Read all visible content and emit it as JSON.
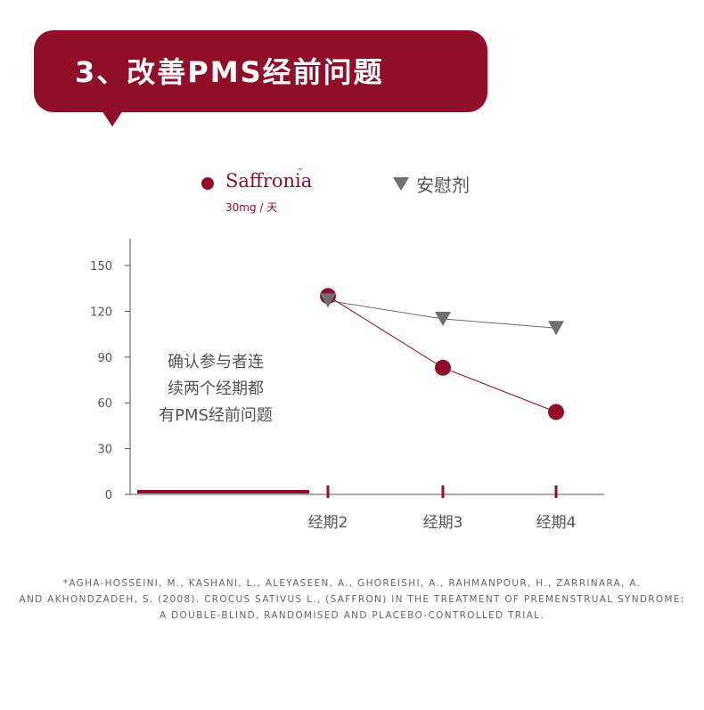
{
  "banner": {
    "title": "3、改善PMS经前问题",
    "color": "#8f0f2b"
  },
  "legend": {
    "series1_brand": "Saffronia",
    "series1_tm": "™",
    "series1_dose": "30mg / 天",
    "series2_label": "安慰剂"
  },
  "annotation": {
    "lines": [
      "确认参与者连",
      "续两个经期都",
      "有PMS经前问题"
    ]
  },
  "chart_data": {
    "type": "line",
    "categories": [
      "经期2",
      "经期3",
      "经期4"
    ],
    "ylim": [
      0,
      150
    ],
    "yticks": [
      0,
      30,
      60,
      90,
      120,
      150
    ],
    "series": [
      {
        "name": "Saffronia",
        "marker": "circle",
        "color": "#8f0f2b",
        "values": [
          130,
          83,
          54
        ]
      },
      {
        "name": "安慰剂",
        "marker": "triangle-down",
        "color": "#6f6f6f",
        "values": [
          127,
          115,
          109
        ]
      }
    ]
  },
  "citation": {
    "lines": [
      "*AGHA-HOSSEINI, M., KASHANI, L., ALEYASEEN, A., GHOREISHI, A., RAHMANPOUR, H., ZARRINARA, A.",
      "AND AKHONDZADEH, S. (2008). CROCUS SATIVUS L., (SAFFRON) IN THE TREATMENT OF PREMENSTRUAL SYNDROME:",
      "A DOUBLE-BLIND, RANDOMISED AND PLACEBO-CONTROLLED TRIAL."
    ]
  }
}
